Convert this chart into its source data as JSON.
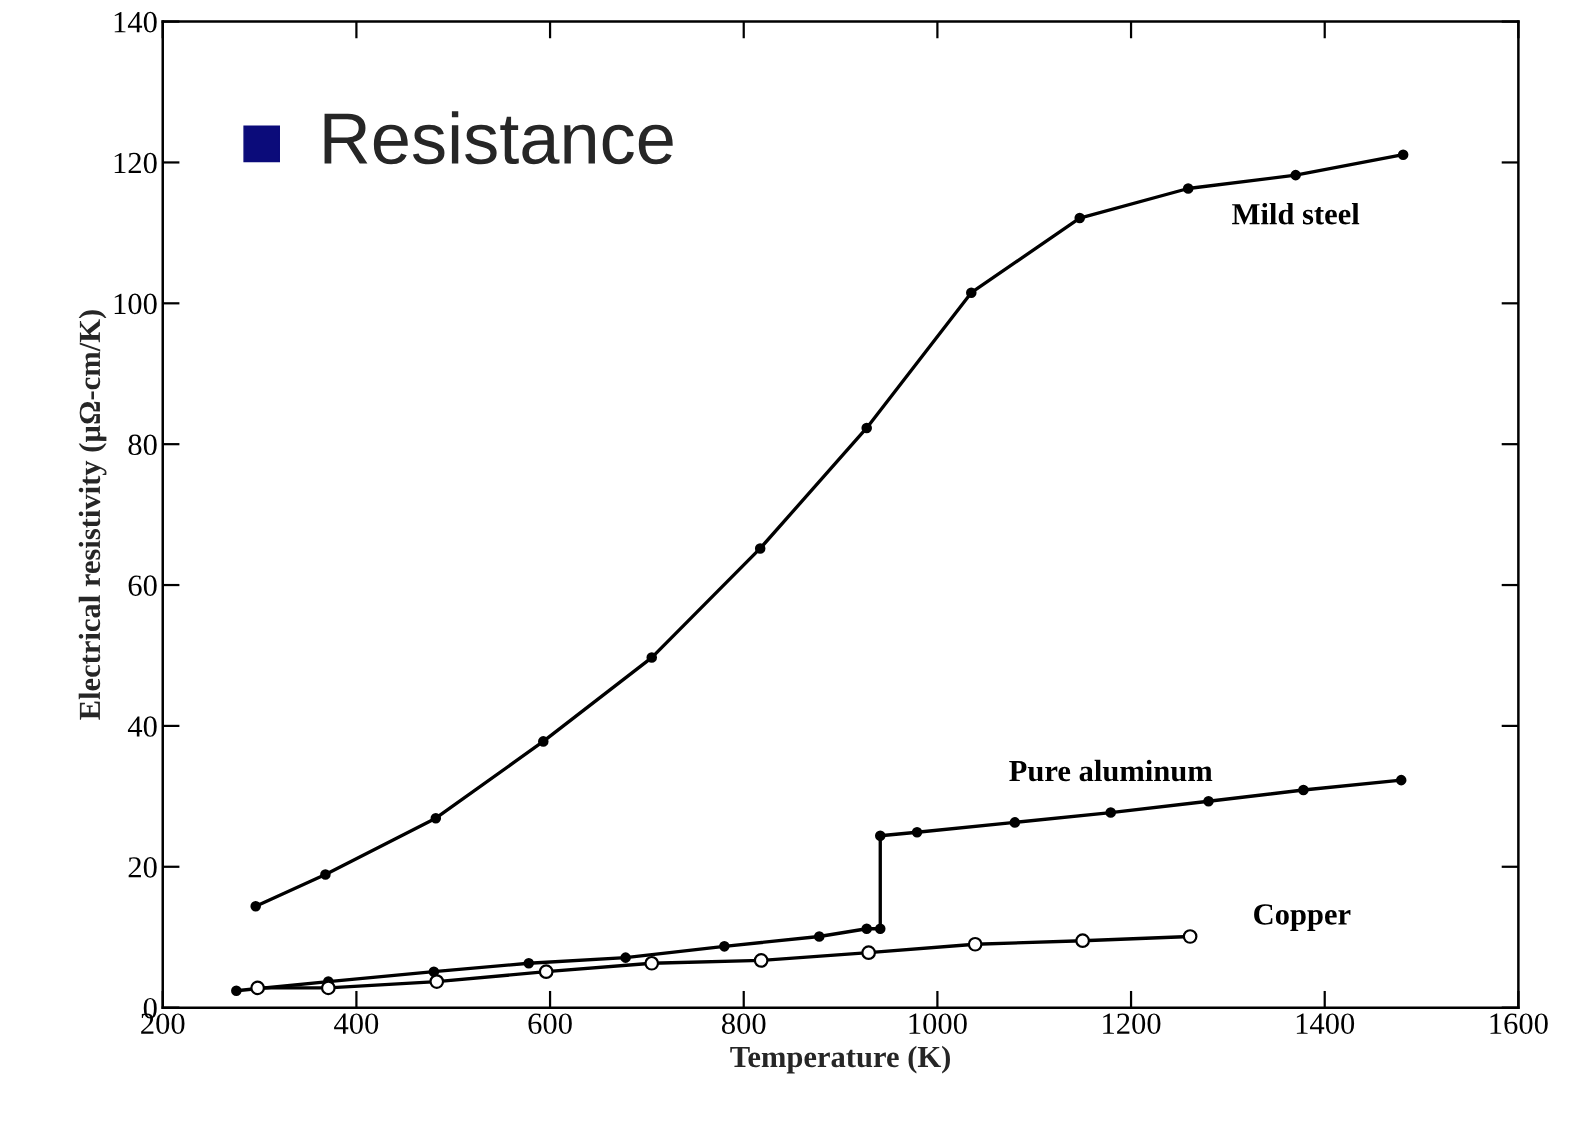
{
  "chart_data": {
    "type": "line",
    "xlabel": "Temperature (K)",
    "ylabel": "Electrical resistivity (µΩ-cm/K)",
    "annotations": [
      "Resistance"
    ],
    "xlim": [
      200,
      1600
    ],
    "xticks": [
      200,
      400,
      600,
      800,
      1000,
      1200,
      1400,
      1600
    ],
    "ylim": [
      0,
      140
    ],
    "yticks": [
      0,
      20,
      40,
      60,
      80,
      100,
      120,
      140
    ],
    "grid": false,
    "legend": false,
    "marker": "circle",
    "line_style": "solid",
    "series": [
      {
        "name": "Mild steel",
        "color": "#000000",
        "x": [
          296,
          368,
          482,
          593,
          705,
          817,
          927,
          1035,
          1147,
          1259,
          1370,
          1481
        ],
        "values": [
          14.4,
          18.9,
          26.9,
          37.8,
          49.7,
          65.2,
          82.3,
          101.5,
          112.1,
          116.3,
          118.2,
          121.1
        ]
      },
      {
        "name": "Pure aluminum",
        "color": "#000000",
        "x": [
          276,
          371,
          480,
          578,
          678,
          780,
          878,
          927,
          941,
          941,
          979,
          1080,
          1179,
          1280,
          1378,
          1479
        ],
        "values": [
          2.4,
          3.7,
          5.1,
          6.3,
          7.1,
          8.7,
          10.1,
          11.2,
          11.2,
          24.4,
          24.9,
          26.3,
          27.7,
          29.3,
          30.9,
          32.3
        ]
      },
      {
        "name": "Copper",
        "color": "#000000",
        "x": [
          298,
          371,
          483,
          596,
          705,
          818,
          929,
          1039,
          1150,
          1261
        ],
        "values": [
          2.8,
          2.8,
          3.7,
          5.1,
          6.3,
          6.7,
          7.8,
          9.0,
          9.5,
          10.1
        ]
      }
    ]
  }
}
